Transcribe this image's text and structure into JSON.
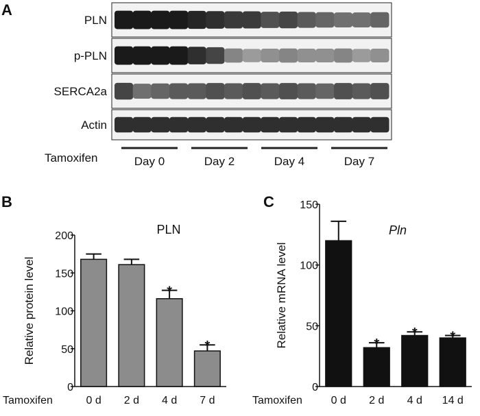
{
  "panels": {
    "a": {
      "letter": "A",
      "blots": [
        {
          "label": "PLN",
          "intensities": [
            0.95,
            0.95,
            0.95,
            0.95,
            0.9,
            0.85,
            0.8,
            0.8,
            0.7,
            0.75,
            0.65,
            0.6,
            0.55,
            0.55,
            0.6
          ]
        },
        {
          "label": "p-PLN",
          "intensities": [
            0.95,
            0.95,
            0.95,
            0.95,
            0.85,
            0.75,
            0.45,
            0.35,
            0.4,
            0.45,
            0.4,
            0.4,
            0.45,
            0.35,
            0.4
          ]
        },
        {
          "label": "SERCA2a",
          "intensities": [
            0.75,
            0.55,
            0.6,
            0.65,
            0.65,
            0.7,
            0.65,
            0.7,
            0.65,
            0.7,
            0.65,
            0.6,
            0.7,
            0.65,
            0.7
          ]
        },
        {
          "label": "Actin",
          "intensities": [
            0.85,
            0.85,
            0.85,
            0.85,
            0.85,
            0.85,
            0.85,
            0.85,
            0.85,
            0.85,
            0.85,
            0.85,
            0.85,
            0.85,
            0.85
          ]
        }
      ],
      "treatment_label": "Tamoxifen",
      "groups": [
        "Day 0",
        "Day 2",
        "Day 4",
        "Day 7"
      ]
    },
    "b": {
      "letter": "B",
      "treatment_label": "Tamoxifen",
      "significance_marker": "*"
    },
    "c": {
      "letter": "C",
      "treatment_label": "Tamoxifen",
      "significance_marker": "*"
    }
  },
  "chart_data": [
    {
      "type": "bar",
      "title": "PLN",
      "ylabel": "Relative protein level",
      "xlabel": "",
      "categories": [
        "0 d",
        "2 d",
        "4 d",
        "7 d"
      ],
      "values": [
        168,
        161,
        116,
        47
      ],
      "errors": [
        7,
        7,
        11,
        8
      ],
      "significant": [
        false,
        false,
        true,
        true
      ],
      "ylim": [
        0,
        200
      ],
      "yticks": [
        0,
        50,
        100,
        150,
        200
      ],
      "bar_color": "#8c8c8c"
    },
    {
      "type": "bar",
      "title": "Pln",
      "ylabel": "Relative mRNA level",
      "xlabel": "",
      "categories": [
        "0 d",
        "2 d",
        "4 d",
        "14 d"
      ],
      "values": [
        120,
        32,
        42,
        40
      ],
      "errors": [
        16,
        4,
        3,
        2
      ],
      "significant": [
        false,
        true,
        true,
        true
      ],
      "ylim": [
        0,
        150
      ],
      "yticks": [
        0,
        50,
        100,
        150
      ],
      "bar_color": "#111111"
    }
  ]
}
